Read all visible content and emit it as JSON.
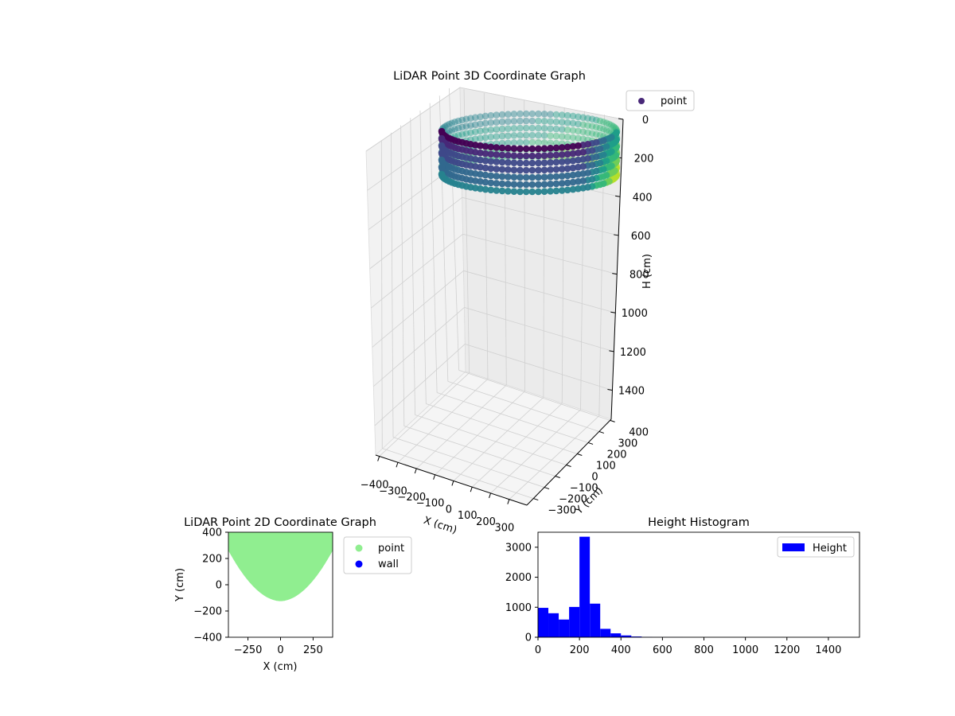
{
  "chart_data": [
    {
      "type": "scatter",
      "projection": "3d",
      "title": "LiDAR Point 3D Coordinate Graph",
      "xlabel": "X (cm)",
      "ylabel": "Y (cm)",
      "zlabel": "H (cm)",
      "xticks": [
        "−400",
        "−300",
        "−200",
        "−100",
        "0",
        "100",
        "200",
        "300"
      ],
      "yticks": [
        "−300",
        "−200",
        "−100",
        "0",
        "100",
        "200",
        "300",
        "400"
      ],
      "zticks": [
        "0",
        "200",
        "400",
        "600",
        "800",
        "1000",
        "1200",
        "1400"
      ],
      "xlim": [
        -400,
        400
      ],
      "ylim": [
        -400,
        400
      ],
      "zlim": [
        1550,
        0
      ],
      "zinverted": true,
      "grid": true,
      "colormap": "viridis",
      "shape": "ring of points around the sensor, ~ -350..350 in X and Y, heights ~0..450",
      "legend": {
        "placement": "outside top-right",
        "entries": [
          {
            "label": "point",
            "color": "#482878"
          }
        ]
      }
    },
    {
      "type": "scatter",
      "title": "LiDAR Point 2D Coordinate Graph",
      "xlabel": "X (cm)",
      "ylabel": "Y (cm)",
      "xticks": [
        "−250",
        "0",
        "250"
      ],
      "yticks": [
        "−400",
        "−200",
        "0",
        "200",
        "400"
      ],
      "xlim": [
        -400,
        400
      ],
      "ylim": [
        -400,
        400
      ],
      "region_note": "dense filled bowl of points: y from ~-130 at x=0 up to 400, spanning x ~ -400..400",
      "legend": {
        "placement": "outside right",
        "entries": [
          {
            "label": "point",
            "color": "#90ee90"
          },
          {
            "label": "wall",
            "color": "#0000ff"
          }
        ]
      }
    },
    {
      "type": "bar",
      "subtype": "histogram",
      "title": "Height Histogram",
      "xticks": [
        "0",
        "200",
        "400",
        "600",
        "800",
        "1000",
        "1200",
        "1400"
      ],
      "yticks": [
        "0",
        "1000",
        "2000",
        "3000"
      ],
      "xlim": [
        0,
        1550
      ],
      "ylim": [
        0,
        3500
      ],
      "bin_width": 50,
      "bin_edges_start": 0,
      "values": [
        980,
        800,
        590,
        1010,
        3350,
        1120,
        280,
        130,
        60,
        25,
        10,
        5,
        3,
        2,
        1,
        1,
        1,
        1,
        1,
        1,
        1,
        1,
        1,
        1,
        1,
        1,
        1,
        1,
        1,
        1,
        0
      ],
      "color": "#0000ff",
      "legend": {
        "placement": "top-right",
        "entries": [
          {
            "label": "Height",
            "color": "#0000ff"
          }
        ]
      }
    }
  ]
}
